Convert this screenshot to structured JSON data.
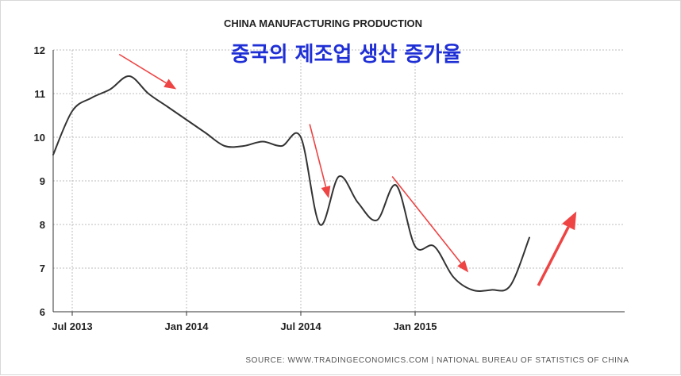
{
  "chart_data": {
    "type": "line",
    "title": "CHINA MANUFACTURING PRODUCTION",
    "annotation": "중국의 제조업 생산 증가율",
    "source": "SOURCE: WWW.TRADINGECONOMICS.COM  |  NATIONAL BUREAU OF STATISTICS OF CHINA",
    "xlabel": "",
    "ylabel": "",
    "xlim": [
      "2013-06",
      "2015-12"
    ],
    "ylim": [
      6,
      12
    ],
    "yticks": [
      6,
      7,
      8,
      9,
      10,
      11,
      12
    ],
    "xticks": [
      {
        "label": "Jul 2013",
        "date": "2013-07"
      },
      {
        "label": "Jan 2014",
        "date": "2014-01"
      },
      {
        "label": "Jul 2014",
        "date": "2014-07"
      },
      {
        "label": "Jan 2015",
        "date": "2015-01"
      }
    ],
    "grid": true,
    "line_color": "#333333",
    "arrow_color": "#ee4444",
    "annotation_color": "#1f2fd6",
    "x": [
      "2013-06",
      "2013-07",
      "2013-08",
      "2013-09",
      "2013-10",
      "2013-11",
      "2013-12",
      "2014-01",
      "2014-02",
      "2014-03",
      "2014-04",
      "2014-05",
      "2014-06",
      "2014-07",
      "2014-08",
      "2014-09",
      "2014-10",
      "2014-11",
      "2014-12",
      "2015-01",
      "2015-02",
      "2015-03",
      "2015-04",
      "2015-05",
      "2015-06",
      "2015-07",
      "2015-08",
      "2015-09"
    ],
    "values": [
      9.6,
      10.6,
      10.9,
      11.1,
      11.4,
      11.0,
      10.7,
      10.4,
      10.1,
      9.8,
      9.8,
      9.9,
      9.8,
      10.0,
      8.0,
      9.1,
      8.5,
      8.1,
      8.9,
      7.5,
      7.5,
      6.8,
      6.5,
      6.5,
      6.6,
      7.7,
      null,
      null
    ],
    "arrows": [
      {
        "from": [
          "2013-09-15",
          11.9
        ],
        "to": [
          "2013-12-15",
          11.1
        ]
      },
      {
        "from": [
          "2014-07-15",
          10.3
        ],
        "to": [
          "2014-08-15",
          8.6
        ]
      },
      {
        "from": [
          "2014-11-25",
          9.1
        ],
        "to": [
          "2015-03-25",
          6.9
        ]
      },
      {
        "from": [
          "2015-07-15",
          6.6
        ],
        "to": [
          "2015-09-15",
          8.3
        ]
      }
    ]
  }
}
